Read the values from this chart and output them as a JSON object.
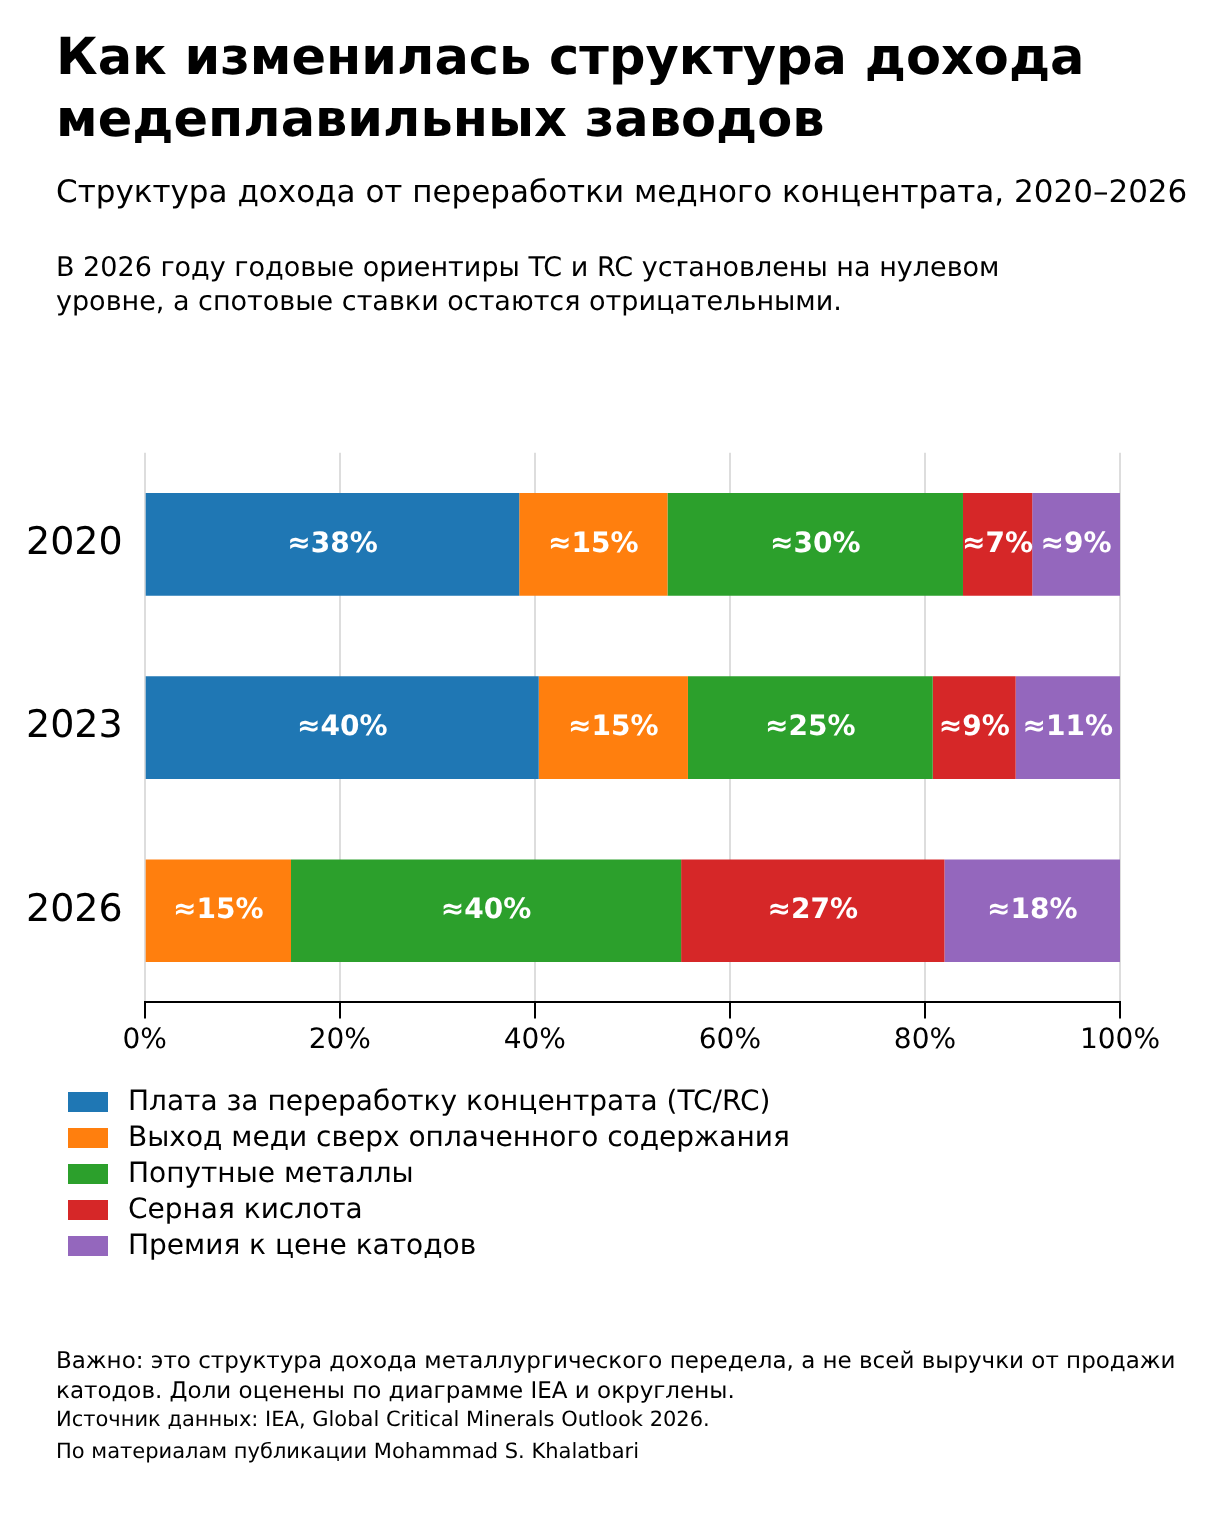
{
  "chart_data": {
    "type": "bar",
    "orientation": "horizontal",
    "stacked": true,
    "title": "Как изменилась структура дохода медеплавильных заводов",
    "subtitle": "Структура дохода от переработки медного концентрата, 2020–2026",
    "annotations": [
      "В 2026 году годовые ориентиры TC и RC установлены на нулевом уровне, а спотовые ставки остаются отрицательными.",
      "Важно: это структура дохода металлургического передела, а не всей выручки от продажи катодов. Доли оценены по диаграмме IEA и округлены.",
      "Источник данных: IEA, Global Critical Minerals Outlook 2026.",
      "По материалам публикации Mohammad S. Khalatbari"
    ],
    "categories": [
      "2020",
      "2023",
      "2026"
    ],
    "series": [
      {
        "name": "Плата за переработку концентрата (TC/RC)",
        "color": "#1f77b4",
        "values": [
          38.4,
          40.4,
          0
        ],
        "value_labels": [
          "≈38%",
          "≈40%",
          null
        ]
      },
      {
        "name": "Выход меди сверх оплаченного содержания",
        "color": "#ff7f0e",
        "values": [
          15.2,
          15.3,
          15
        ],
        "value_labels": [
          "≈15%",
          "≈15%",
          "≈15%"
        ]
      },
      {
        "name": "Попутные металлы",
        "color": "#2ca02c",
        "values": [
          30.3,
          25.1,
          40
        ],
        "value_labels": [
          "≈30%",
          "≈25%",
          "≈40%"
        ]
      },
      {
        "name": "Серная кислота",
        "color": "#d62728",
        "values": [
          7.1,
          8.5,
          27
        ],
        "value_labels": [
          "≈7%",
          "≈9%",
          "≈27%"
        ]
      },
      {
        "name": "Премия к цене катодов",
        "color": "#9467bd",
        "values": [
          9,
          10.7,
          18
        ],
        "value_labels": [
          "≈9%",
          "≈11%",
          "≈18%"
        ]
      }
    ],
    "xlim": [
      0,
      100
    ],
    "xticks": [
      {
        "value": 0,
        "label": "0%"
      },
      {
        "value": 20,
        "label": "20%"
      },
      {
        "value": 40,
        "label": "40%"
      },
      {
        "value": 60,
        "label": "60%"
      },
      {
        "value": 80,
        "label": "80%"
      },
      {
        "value": 100,
        "label": "100%"
      }
    ],
    "grid": "x",
    "legend": "bottom"
  }
}
